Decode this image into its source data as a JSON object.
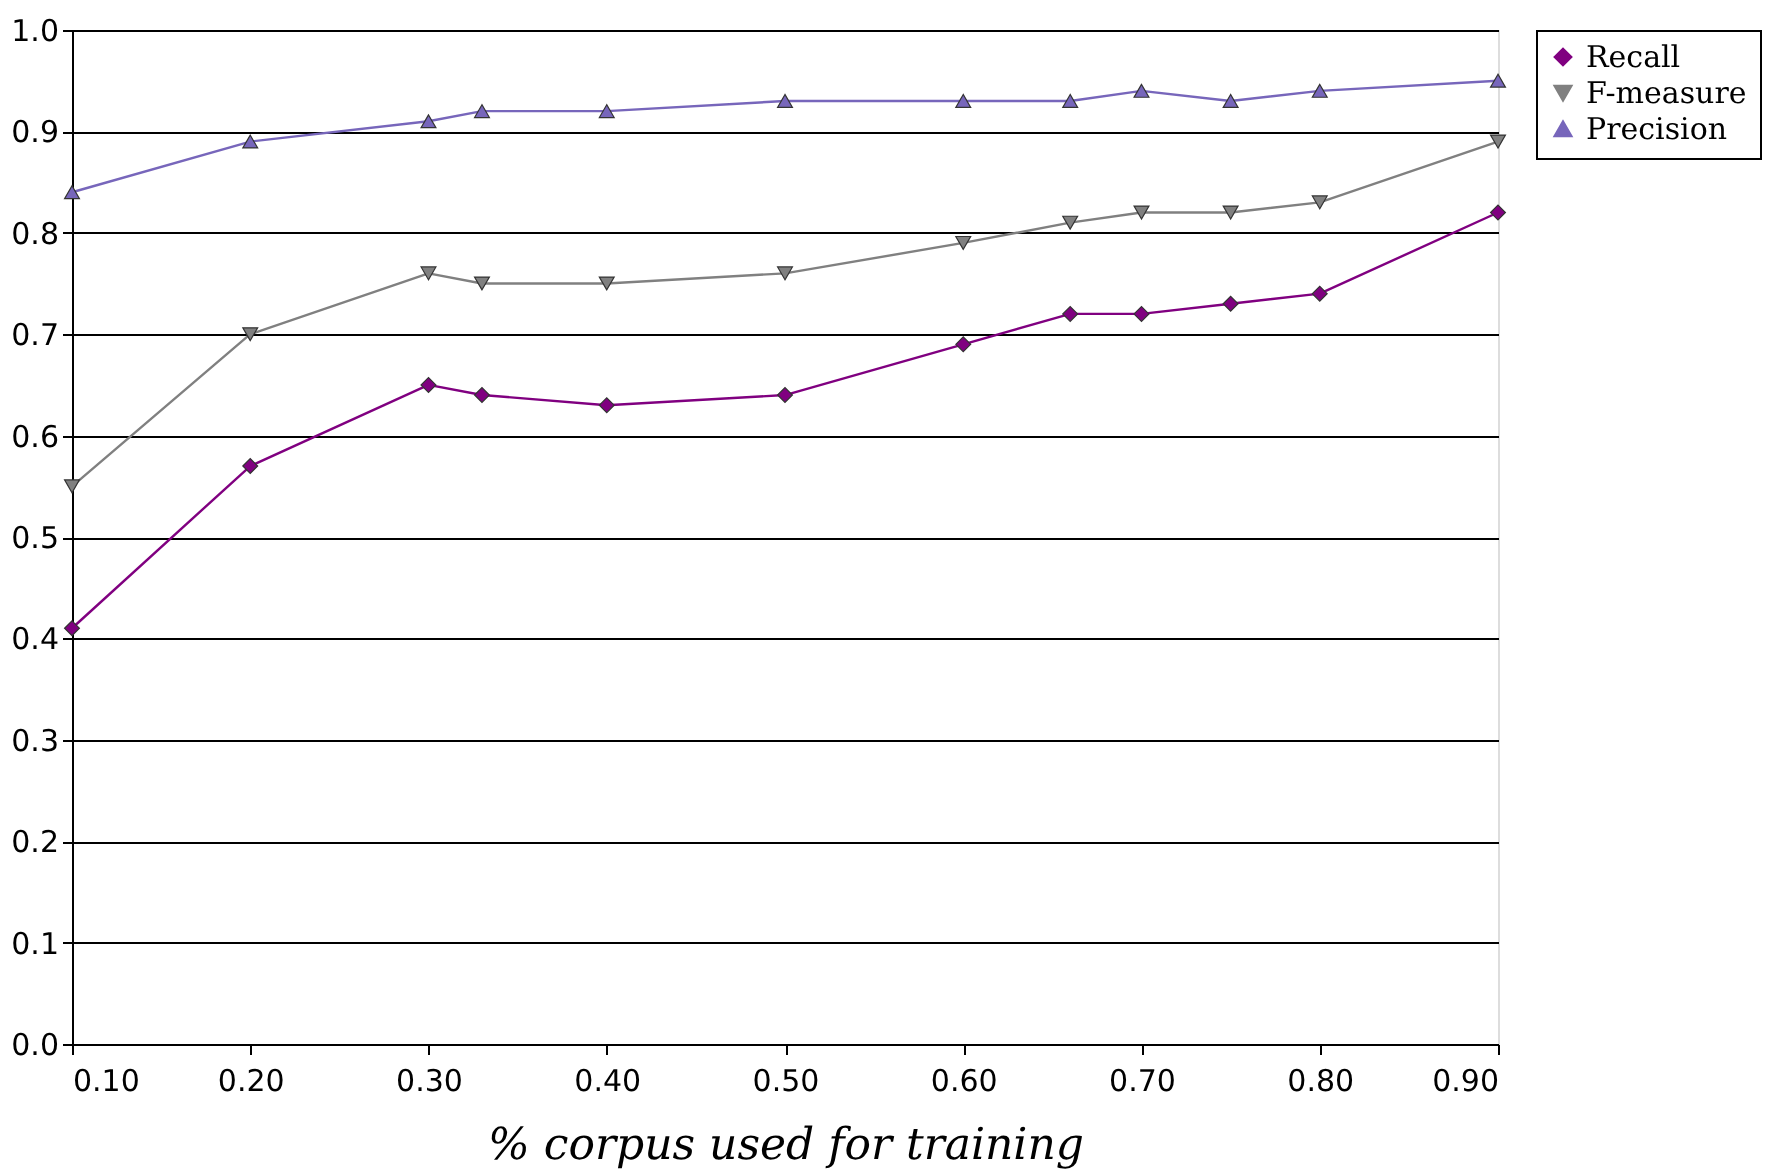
{
  "chart_data": {
    "type": "line",
    "xlabel": "% corpus used for training",
    "x": [
      0.1,
      0.2,
      0.3,
      0.33,
      0.4,
      0.5,
      0.6,
      0.66,
      0.7,
      0.75,
      0.8,
      0.9
    ],
    "series": [
      {
        "name": "Recall",
        "color": "#800080",
        "marker": "diamond",
        "values": [
          0.41,
          0.57,
          0.65,
          0.64,
          0.63,
          0.64,
          0.69,
          0.72,
          0.72,
          0.73,
          0.74,
          0.82
        ]
      },
      {
        "name": "F-measure",
        "color": "#808080",
        "marker": "triangle-down",
        "values": [
          0.55,
          0.7,
          0.76,
          0.75,
          0.75,
          0.76,
          0.79,
          0.81,
          0.82,
          0.82,
          0.83,
          0.89
        ]
      },
      {
        "name": "Precision",
        "color": "#7766bb",
        "marker": "triangle",
        "values": [
          0.84,
          0.89,
          0.91,
          0.92,
          0.92,
          0.93,
          0.93,
          0.93,
          0.94,
          0.93,
          0.94,
          0.95
        ]
      }
    ],
    "xlim": [
      0.1,
      0.9
    ],
    "xticks": [
      {
        "value": 0.1,
        "label": "0.10"
      },
      {
        "value": 0.2,
        "label": "0.20"
      },
      {
        "value": 0.3,
        "label": "0.30"
      },
      {
        "value": 0.4,
        "label": "0.40"
      },
      {
        "value": 0.5,
        "label": "0.50"
      },
      {
        "value": 0.6,
        "label": "0.60"
      },
      {
        "value": 0.7,
        "label": "0.70"
      },
      {
        "value": 0.8,
        "label": "0.80"
      },
      {
        "value": 0.9,
        "label": "0.90"
      }
    ],
    "ylim": [
      0,
      1
    ],
    "yticks": [
      {
        "value": 0,
        "label": "0.0"
      },
      {
        "value": 0.1,
        "label": "0.1"
      },
      {
        "value": 0.2,
        "label": "0.2"
      },
      {
        "value": 0.3,
        "label": "0.3"
      },
      {
        "value": 0.4,
        "label": "0.4"
      },
      {
        "value": 0.5,
        "label": "0.5"
      },
      {
        "value": 0.6,
        "label": "0.6"
      },
      {
        "value": 0.7,
        "label": "0.7"
      },
      {
        "value": 0.8,
        "label": "0.8"
      },
      {
        "value": 0.9,
        "label": "0.9"
      },
      {
        "value": 1,
        "label": "1.0"
      }
    ],
    "grid": "y",
    "legend": "right",
    "line_style": "solid"
  }
}
